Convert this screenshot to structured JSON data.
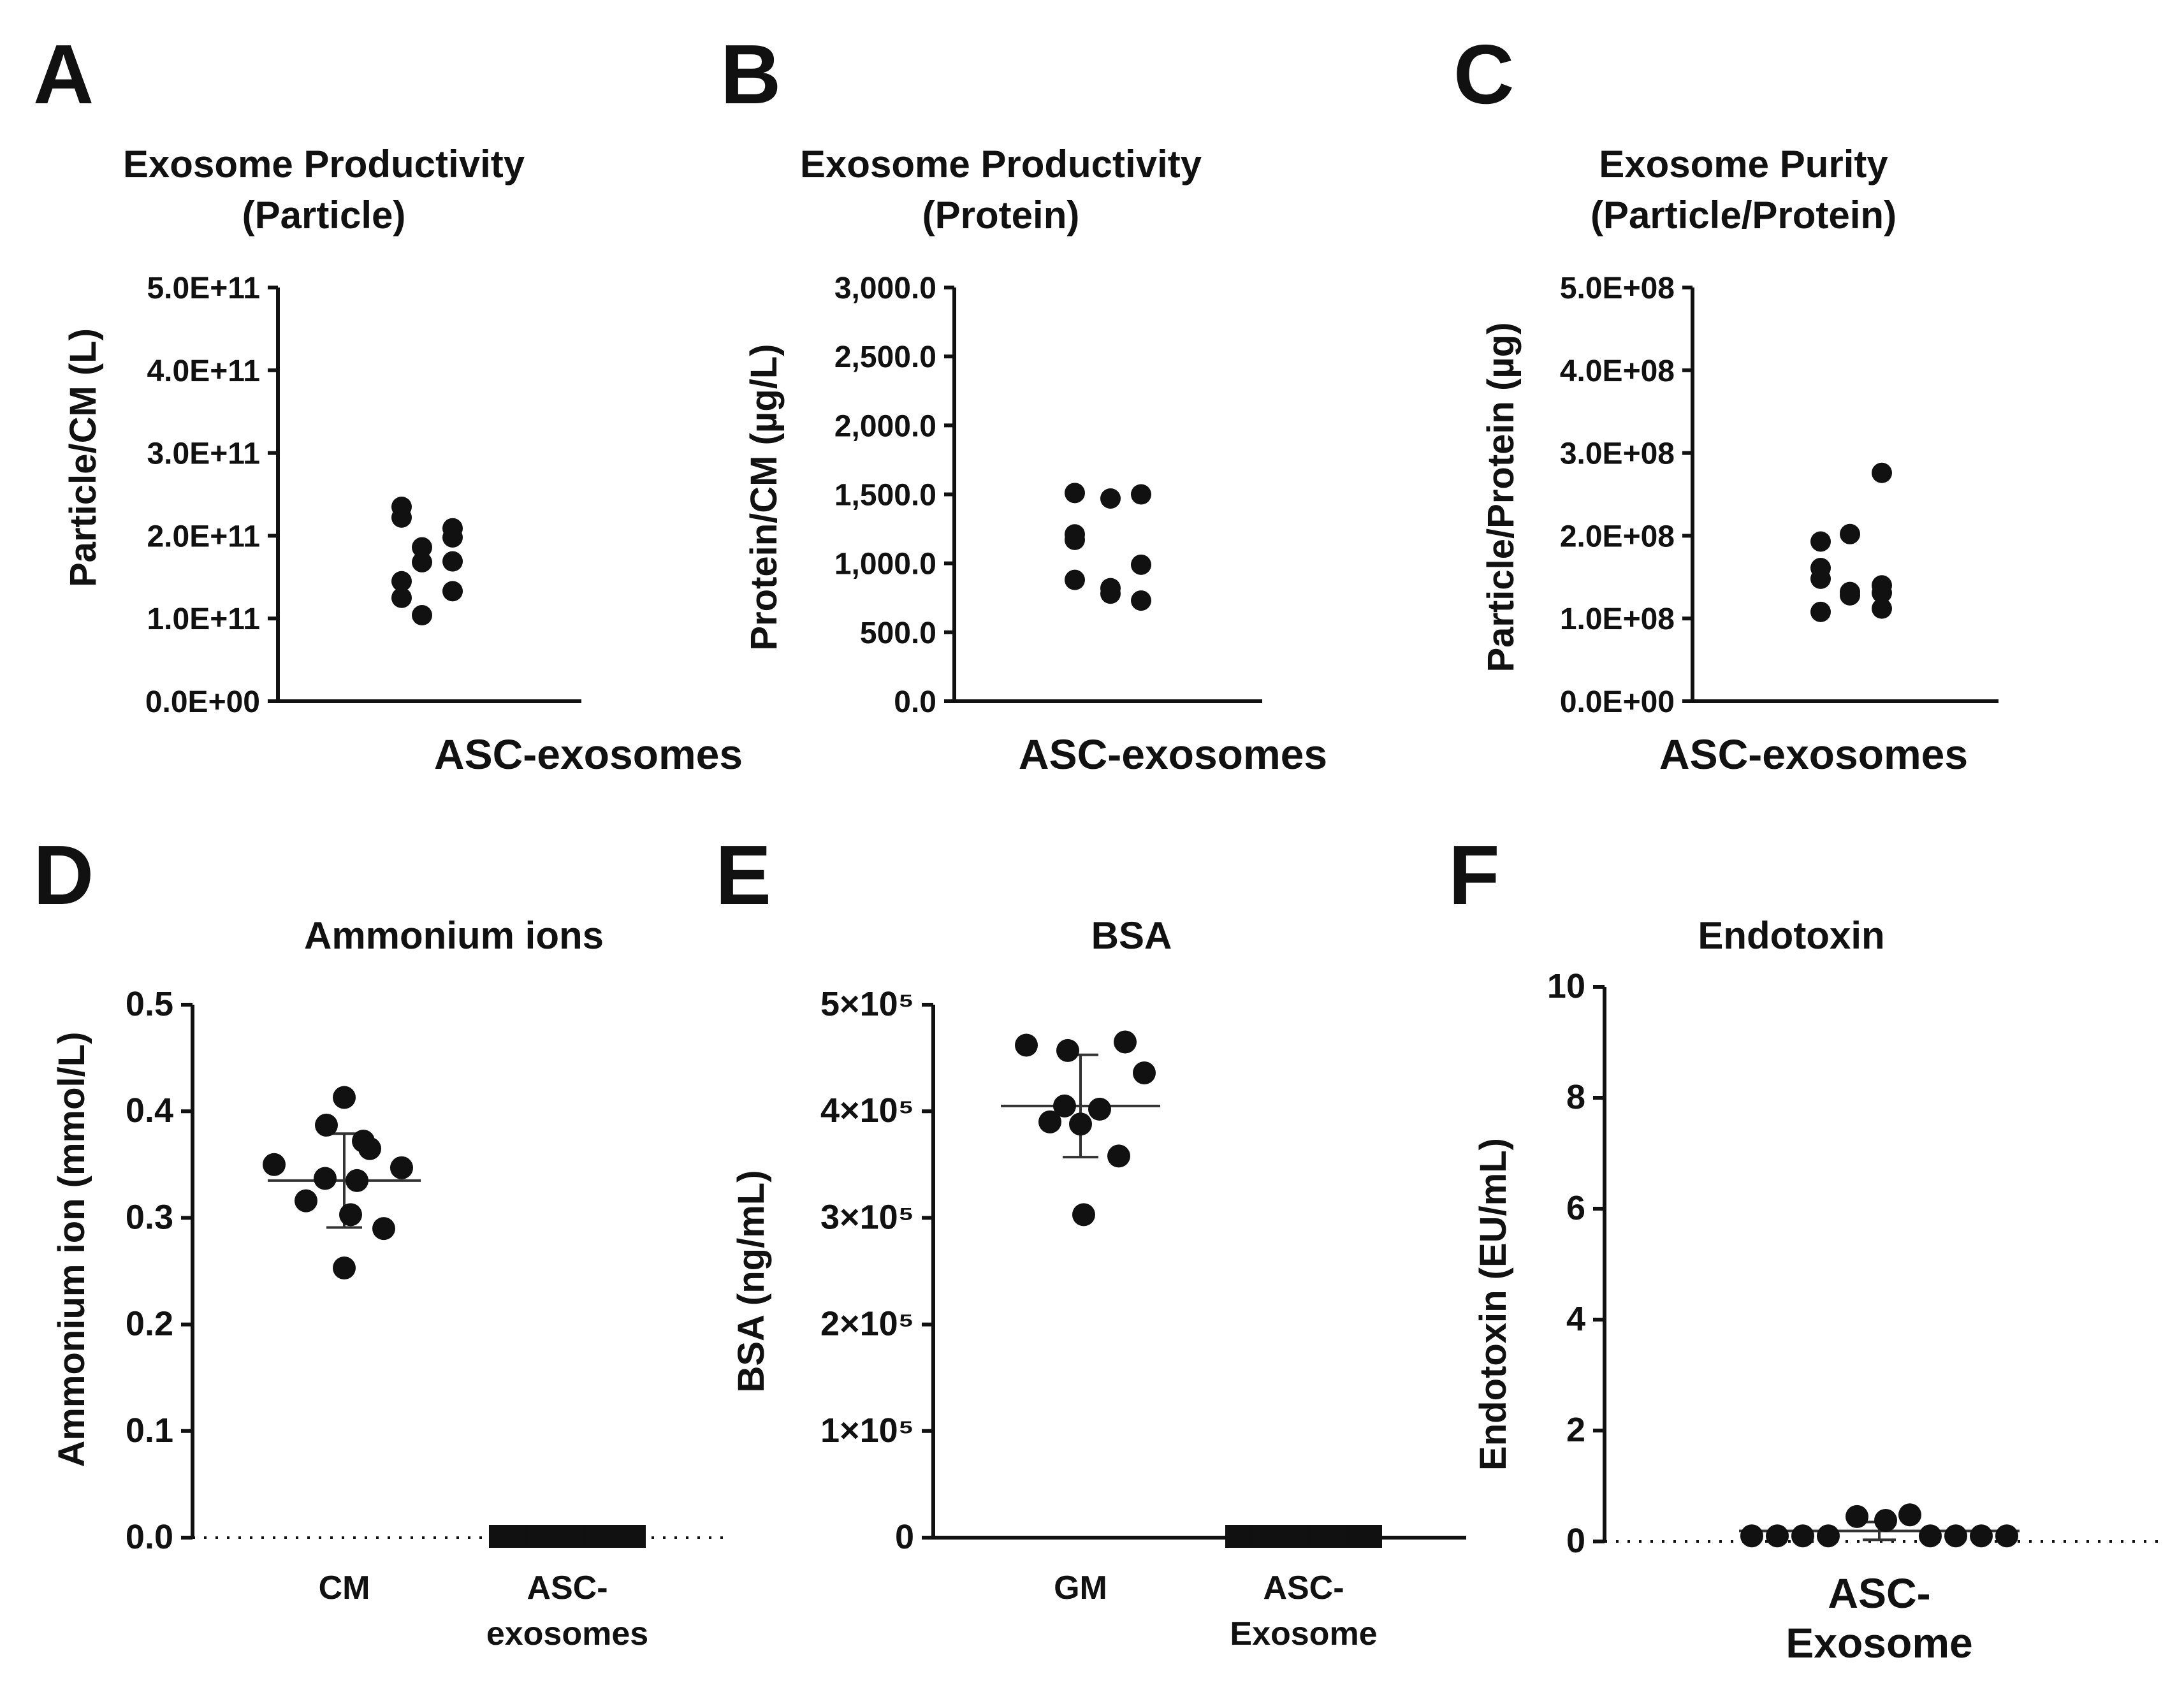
{
  "chart_data": [
    {
      "panel": "A",
      "type": "scatter",
      "title": [
        "Exosome Productivity",
        "(Particle)"
      ],
      "ylabel": "Particle/CM (L)",
      "categories": [
        "ASC-exosomes"
      ],
      "ylim": [
        0,
        500000000000
      ],
      "yticks": [
        0,
        100000000000,
        200000000000,
        300000000000,
        400000000000,
        500000000000
      ],
      "ytick_labels": [
        "0.0E+00",
        "1.0E+11",
        "2.0E+11",
        "3.0E+11",
        "4.0E+11",
        "5.0E+11"
      ],
      "series": [
        {
          "name": "ASC-exosomes",
          "values": [
            235000000000,
            222000000000,
            145000000000,
            125000000000,
            104000000000,
            186000000000,
            168000000000,
            209000000000,
            198000000000,
            169000000000,
            133000000000
          ]
        }
      ]
    },
    {
      "panel": "B",
      "type": "scatter",
      "title": [
        "Exosome Productivity",
        "(Protein)"
      ],
      "ylabel": "Protein/CM (µg/L)",
      "categories": [
        "ASC-exosomes"
      ],
      "ylim": [
        0,
        3000
      ],
      "yticks": [
        0,
        500,
        1000,
        1500,
        2000,
        2500,
        3000
      ],
      "ytick_labels": [
        "0.0",
        "500.0",
        "1,000.0",
        "1,500.0",
        "2,000.0",
        "2,500.0",
        "3,000.0"
      ],
      "series": [
        {
          "name": "ASC-exosomes",
          "values": [
            1510,
            1210,
            1170,
            880,
            1470,
            820,
            780,
            1500,
            990,
            730
          ]
        }
      ]
    },
    {
      "panel": "C",
      "type": "scatter",
      "title": [
        "Exosome Purity",
        "(Particle/Protein)"
      ],
      "ylabel": "Particle/Protein (µg)",
      "categories": [
        "ASC-exosomes"
      ],
      "ylim": [
        0,
        500000000
      ],
      "yticks": [
        0,
        100000000,
        200000000,
        300000000,
        400000000,
        500000000
      ],
      "ytick_labels": [
        "0.0E+00",
        "1.0E+08",
        "2.0E+08",
        "3.0E+08",
        "4.0E+08",
        "5.0E+08"
      ],
      "series": [
        {
          "name": "ASC-exosomes",
          "values": [
            193000000,
            161000000,
            148000000,
            108000000,
            202000000,
            132000000,
            128000000,
            276000000,
            140000000,
            131000000,
            112000000
          ]
        }
      ]
    },
    {
      "panel": "D",
      "type": "scatter",
      "title": [
        "Ammonium ions"
      ],
      "ylabel": "Ammonium ion (mmol/L)",
      "categories": [
        "CM",
        "ASC-exosomes"
      ],
      "category_lines": [
        [
          "CM"
        ],
        [
          "ASC-",
          "exosomes"
        ]
      ],
      "ylim": [
        0,
        0.5
      ],
      "yticks": [
        0,
        0.1,
        0.2,
        0.3,
        0.4,
        0.5
      ],
      "ytick_labels": [
        "0.0",
        "0.1",
        "0.2",
        "0.3",
        "0.4",
        "0.5"
      ],
      "series": [
        {
          "name": "CM",
          "values": [
            0.413,
            0.387,
            0.372,
            0.365,
            0.35,
            0.347,
            0.337,
            0.335,
            0.316,
            0.303,
            0.29,
            0.253
          ],
          "mean": 0.335,
          "sd": 0.044
        },
        {
          "name": "ASC-exosomes",
          "values": [
            0,
            0,
            0,
            0,
            0,
            0,
            0,
            0,
            0,
            0,
            0,
            0
          ]
        }
      ]
    },
    {
      "panel": "E",
      "type": "scatter",
      "title": [
        "BSA"
      ],
      "ylabel": "BSA (ng/mL)",
      "categories": [
        "GM",
        "ASC-Exosome"
      ],
      "category_lines": [
        [
          "GM"
        ],
        [
          "ASC-",
          "Exosome"
        ]
      ],
      "ylim": [
        0,
        500000
      ],
      "yticks": [
        0,
        100000,
        200000,
        300000,
        400000,
        500000
      ],
      "ytick_labels": [
        "0",
        "1×10⁵",
        "2×10⁵",
        "3×10⁵",
        "4×10⁵",
        "5×10⁵"
      ],
      "series": [
        {
          "name": "GM",
          "values": [
            465000,
            462000,
            457000,
            436000,
            405000,
            402000,
            390000,
            388000,
            358000,
            303000
          ],
          "mean": 405000,
          "sd": 48000
        },
        {
          "name": "ASC-Exosome",
          "values": [
            0,
            0,
            0,
            0,
            0,
            0,
            0,
            0,
            0,
            0,
            0,
            0
          ]
        }
      ]
    },
    {
      "panel": "F",
      "type": "scatter",
      "title": [
        "Endotoxin"
      ],
      "ylabel": "Endotoxin (EU/mL)",
      "categories": [
        "ASC-Exosome"
      ],
      "category_lines": [
        [
          "ASC-",
          "Exosome"
        ]
      ],
      "ylim": [
        0,
        10
      ],
      "yticks": [
        0,
        2,
        4,
        6,
        8,
        10
      ],
      "ytick_labels": [
        "0",
        "2",
        "4",
        "6",
        "8",
        "10"
      ],
      "series": [
        {
          "name": "ASC-Exosome",
          "values": [
            0.1,
            0.1,
            0.1,
            0.1,
            0.45,
            0.38,
            0.48,
            0.1,
            0.1,
            0.1,
            0.1
          ],
          "mean": 0.19,
          "sd": 0.16
        }
      ]
    }
  ]
}
